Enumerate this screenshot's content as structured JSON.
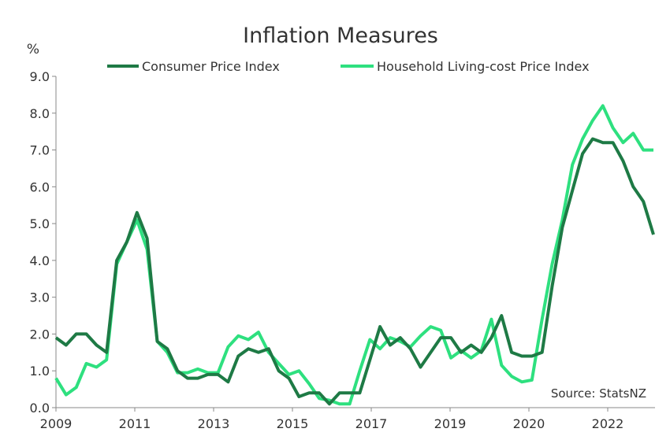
{
  "chart_data": {
    "type": "line",
    "title": "Inflation Measures",
    "ylabel": "%",
    "xlabel": "",
    "ylim": [
      0,
      9
    ],
    "yticks": [
      "0.0",
      "1.0",
      "2.0",
      "3.0",
      "4.0",
      "5.0",
      "6.0",
      "7.0",
      "8.0",
      "9.0"
    ],
    "xtick_labels": [
      "2009",
      "2011",
      "2013",
      "2015",
      "2017",
      "2019",
      "2020",
      "2022"
    ],
    "x_start": "2009 Q2",
    "frequency": "quarterly",
    "annotation": "Source: StatsNZ",
    "legend_position": "top",
    "grid": false,
    "series": [
      {
        "name": "Consumer Price Index",
        "color": "#1e7a45",
        "values": [
          1.9,
          1.7,
          2.0,
          2.0,
          1.7,
          1.5,
          4.0,
          4.5,
          5.3,
          4.6,
          1.8,
          1.6,
          1.0,
          0.8,
          0.8,
          0.9,
          0.9,
          0.7,
          1.4,
          1.6,
          1.5,
          1.6,
          1.0,
          0.8,
          0.3,
          0.4,
          0.4,
          0.1,
          0.4,
          0.4,
          0.4,
          1.3,
          2.2,
          1.7,
          1.9,
          1.6,
          1.1,
          1.5,
          1.9,
          1.9,
          1.5,
          1.7,
          1.5,
          1.9,
          2.5,
          1.5,
          1.4,
          1.4,
          1.5,
          3.3,
          4.9,
          5.9,
          6.9,
          7.3,
          7.2,
          7.2,
          6.7,
          6.0,
          5.6,
          4.7
        ]
      },
      {
        "name": "Household Living-cost Price Index",
        "color": "#2ee07f",
        "values": [
          0.8,
          0.35,
          0.55,
          1.2,
          1.1,
          1.3,
          3.9,
          4.5,
          5.1,
          4.3,
          1.8,
          1.5,
          0.95,
          0.95,
          1.05,
          0.95,
          0.95,
          1.65,
          1.95,
          1.85,
          2.05,
          1.5,
          1.2,
          0.9,
          1.0,
          0.65,
          0.25,
          0.2,
          0.1,
          0.1,
          1.0,
          1.85,
          1.6,
          1.9,
          1.8,
          1.65,
          1.95,
          2.2,
          2.1,
          1.35,
          1.55,
          1.35,
          1.55,
          2.4,
          1.15,
          0.85,
          0.7,
          0.75,
          2.4,
          3.9,
          5.1,
          6.6,
          7.3,
          7.8,
          8.2,
          7.6,
          7.2,
          7.45,
          7.0,
          7.0
        ]
      }
    ]
  }
}
